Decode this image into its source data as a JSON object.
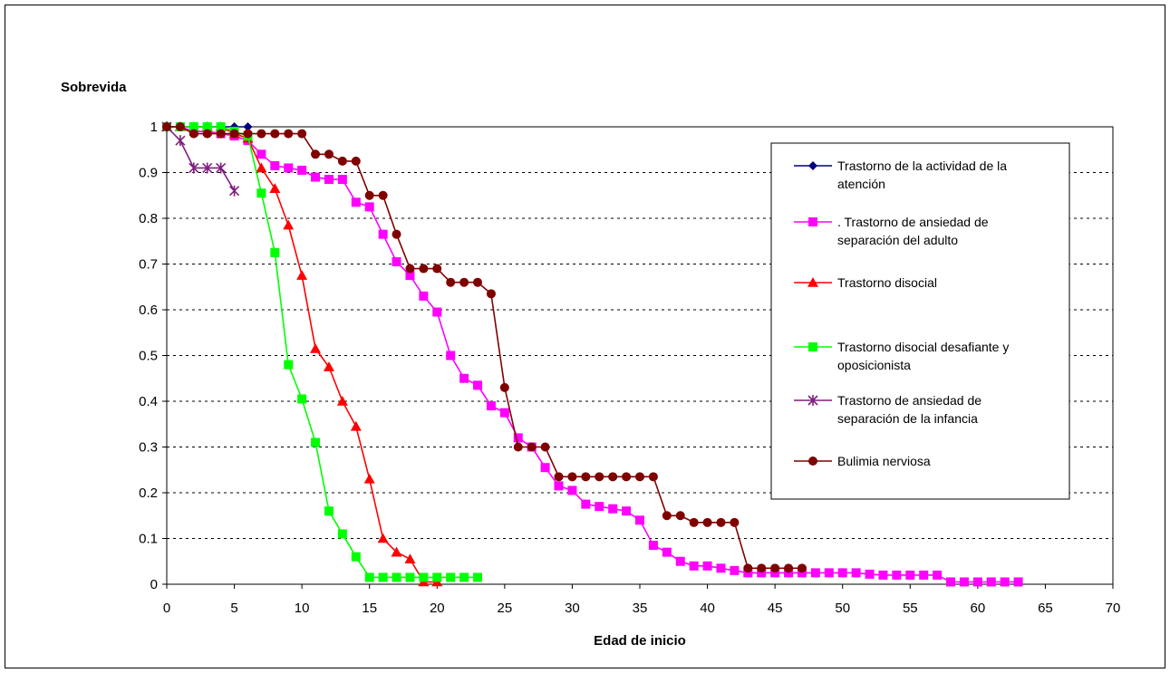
{
  "chart_data": {
    "type": "line",
    "title": "",
    "xlabel": "Edad de inicio",
    "ylabel": "Sobrevida",
    "xlim": [
      0,
      70
    ],
    "ylim": [
      0,
      1
    ],
    "xticks": [
      "0",
      "5",
      "10",
      "15",
      "20",
      "25",
      "30",
      "35",
      "40",
      "45",
      "50",
      "55",
      "60",
      "65",
      "70"
    ],
    "yticks": [
      "0",
      "0.1",
      "0.2",
      "0.3",
      "0.4",
      "0.5",
      "0.6",
      "0.7",
      "0.8",
      "0.9",
      "1"
    ],
    "grid": "horizontal dashed",
    "legend_position": "right",
    "series": [
      {
        "name": "Trastorno de la actividad de la atención",
        "legend_lines": [
          "Trastorno de la actividad de la",
          "atención"
        ],
        "color": "#000080",
        "marker": "diamond",
        "x": [
          0,
          1,
          2,
          3,
          4,
          5,
          6
        ],
        "y": [
          1,
          1,
          1,
          1,
          1,
          1,
          1
        ]
      },
      {
        "name": ". Trastorno de ansiedad de separación del adulto",
        "legend_lines": [
          ". Trastorno de ansiedad de",
          "separación del adulto"
        ],
        "color": "#ff00ff",
        "marker": "square",
        "x": [
          0,
          1,
          2,
          3,
          4,
          5,
          6,
          7,
          8,
          9,
          10,
          11,
          12,
          13,
          14,
          15,
          16,
          17,
          18,
          19,
          20,
          21,
          22,
          23,
          24,
          25,
          26,
          27,
          28,
          29,
          30,
          31,
          32,
          33,
          34,
          35,
          36,
          37,
          38,
          39,
          40,
          41,
          42,
          43,
          44,
          45,
          46,
          47,
          48,
          49,
          50,
          51,
          52,
          53,
          54,
          55,
          56,
          57,
          58,
          59,
          60,
          61,
          62,
          63
        ],
        "y": [
          1,
          1,
          0.99,
          0.99,
          0.985,
          0.98,
          0.97,
          0.94,
          0.915,
          0.91,
          0.905,
          0.89,
          0.885,
          0.885,
          0.835,
          0.825,
          0.765,
          0.705,
          0.675,
          0.63,
          0.595,
          0.5,
          0.45,
          0.435,
          0.39,
          0.375,
          0.32,
          0.3,
          0.255,
          0.215,
          0.205,
          0.175,
          0.17,
          0.165,
          0.16,
          0.14,
          0.085,
          0.07,
          0.05,
          0.04,
          0.04,
          0.035,
          0.03,
          0.025,
          0.025,
          0.025,
          0.025,
          0.025,
          0.025,
          0.025,
          0.025,
          0.025,
          0.022,
          0.02,
          0.02,
          0.02,
          0.02,
          0.02,
          0.005,
          0.005,
          0.005,
          0.005,
          0.005,
          0.005
        ]
      },
      {
        "name": "Trastorno disocial",
        "legend_lines": [
          "Trastorno disocial"
        ],
        "color": "#ff0000",
        "marker": "triangle",
        "x": [
          0,
          1,
          2,
          3,
          4,
          5,
          6,
          7,
          8,
          9,
          10,
          11,
          12,
          13,
          14,
          15,
          16,
          17,
          18,
          19,
          20
        ],
        "y": [
          1,
          1,
          1,
          1,
          1,
          0.985,
          0.975,
          0.91,
          0.865,
          0.785,
          0.675,
          0.515,
          0.475,
          0.4,
          0.345,
          0.23,
          0.1,
          0.07,
          0.055,
          0.005,
          0.005
        ]
      },
      {
        "name": "Trastorno disocial desafiante y oposicionista",
        "legend_lines": [
          "Trastorno disocial desafiante y",
          "oposicionista"
        ],
        "color": "#00ff00",
        "marker": "square",
        "x": [
          0,
          1,
          2,
          3,
          4,
          5,
          6,
          7,
          8,
          9,
          10,
          11,
          12,
          13,
          14,
          15,
          16,
          17,
          18,
          19,
          20,
          21,
          22,
          23
        ],
        "y": [
          1,
          1,
          1,
          1,
          1,
          0.99,
          0.98,
          0.855,
          0.725,
          0.48,
          0.405,
          0.31,
          0.16,
          0.11,
          0.06,
          0.015,
          0.015,
          0.015,
          0.015,
          0.015,
          0.015,
          0.015,
          0.015,
          0.015
        ]
      },
      {
        "name": "Trastorno de ansiedad de separación de la infancia",
        "legend_lines": [
          "Trastorno de ansiedad de",
          "separación de la infancia"
        ],
        "color": "#7f1f7f",
        "marker": "star",
        "x": [
          0,
          1,
          2,
          3,
          4,
          5
        ],
        "y": [
          1,
          0.97,
          0.91,
          0.91,
          0.91,
          0.86
        ]
      },
      {
        "name": "Bulimia nerviosa",
        "legend_lines": [
          "Bulimia nerviosa"
        ],
        "color": "#800000",
        "marker": "circle",
        "x": [
          0,
          1,
          2,
          3,
          4,
          5,
          6,
          7,
          8,
          9,
          10,
          11,
          12,
          13,
          14,
          15,
          16,
          17,
          18,
          19,
          20,
          21,
          22,
          23,
          24,
          25,
          26,
          27,
          28,
          29,
          30,
          31,
          32,
          33,
          34,
          35,
          36,
          37,
          38,
          39,
          40,
          41,
          42,
          43,
          44,
          45,
          46,
          47
        ],
        "y": [
          1,
          1,
          0.985,
          0.985,
          0.985,
          0.985,
          0.985,
          0.985,
          0.985,
          0.985,
          0.985,
          0.94,
          0.94,
          0.925,
          0.925,
          0.85,
          0.85,
          0.765,
          0.69,
          0.69,
          0.69,
          0.66,
          0.66,
          0.66,
          0.635,
          0.43,
          0.3,
          0.3,
          0.3,
          0.235,
          0.235,
          0.235,
          0.235,
          0.235,
          0.235,
          0.235,
          0.235,
          0.15,
          0.15,
          0.135,
          0.135,
          0.135,
          0.135,
          0.035,
          0.035,
          0.035,
          0.035,
          0.035
        ]
      }
    ]
  }
}
